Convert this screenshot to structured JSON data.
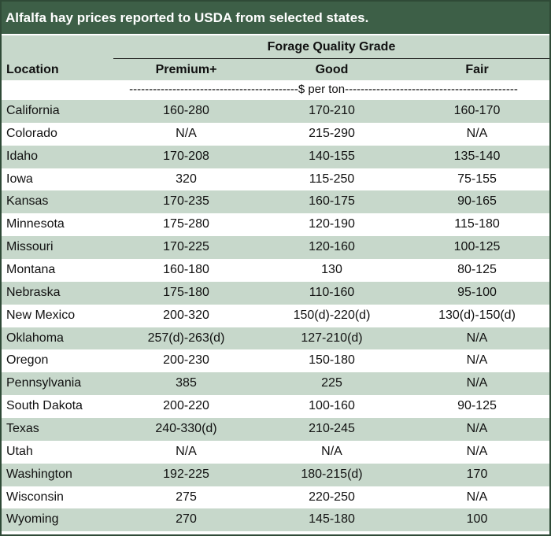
{
  "title": "Alfalfa hay prices reported to USDA from selected states.",
  "header": {
    "group_label": "Forage Quality Grade",
    "location_label": "Location",
    "columns": [
      "Premium+",
      "Good",
      "Fair"
    ],
    "units_label": "-------------------------------------------$ per ton--------------------------------------------"
  },
  "rows": [
    {
      "location": "California",
      "premium": "160-280",
      "good": "170-210",
      "fair": "160-170"
    },
    {
      "location": "Colorado",
      "premium": "N/A",
      "good": "215-290",
      "fair": "N/A"
    },
    {
      "location": "Idaho",
      "premium": "170-208",
      "good": "140-155",
      "fair": "135-140"
    },
    {
      "location": "Iowa",
      "premium": "320",
      "good": "115-250",
      "fair": "75-155"
    },
    {
      "location": "Kansas",
      "premium": "170-235",
      "good": "160-175",
      "fair": "90-165"
    },
    {
      "location": "Minnesota",
      "premium": "175-280",
      "good": "120-190",
      "fair": "115-180"
    },
    {
      "location": "Missouri",
      "premium": "170-225",
      "good": "120-160",
      "fair": "100-125"
    },
    {
      "location": "Montana",
      "premium": "160-180",
      "good": "130",
      "fair": "80-125"
    },
    {
      "location": "Nebraska",
      "premium": "175-180",
      "good": "110-160",
      "fair": "95-100"
    },
    {
      "location": "New Mexico",
      "premium": "200-320",
      "good": "150(d)-220(d)",
      "fair": "130(d)-150(d)"
    },
    {
      "location": "Oklahoma",
      "premium": "257(d)-263(d)",
      "good": "127-210(d)",
      "fair": "N/A"
    },
    {
      "location": "Oregon",
      "premium": "200-230",
      "good": "150-180",
      "fair": "N/A"
    },
    {
      "location": "Pennsylvania",
      "premium": "385",
      "good": "225",
      "fair": "N/A"
    },
    {
      "location": "South Dakota",
      "premium": "200-220",
      "good": "100-160",
      "fair": "90-125"
    },
    {
      "location": "Texas",
      "premium": "240-330(d)",
      "good": "210-245",
      "fair": "N/A"
    },
    {
      "location": "Utah",
      "premium": "N/A",
      "good": "N/A",
      "fair": "N/A"
    },
    {
      "location": "Washington",
      "premium": "192-225",
      "good": "180-215(d)",
      "fair": "170"
    },
    {
      "location": "Wisconsin",
      "premium": "275",
      "good": "220-250",
      "fair": "N/A"
    },
    {
      "location": "Wyoming",
      "premium": "270",
      "good": "145-180",
      "fair": "100"
    }
  ]
}
